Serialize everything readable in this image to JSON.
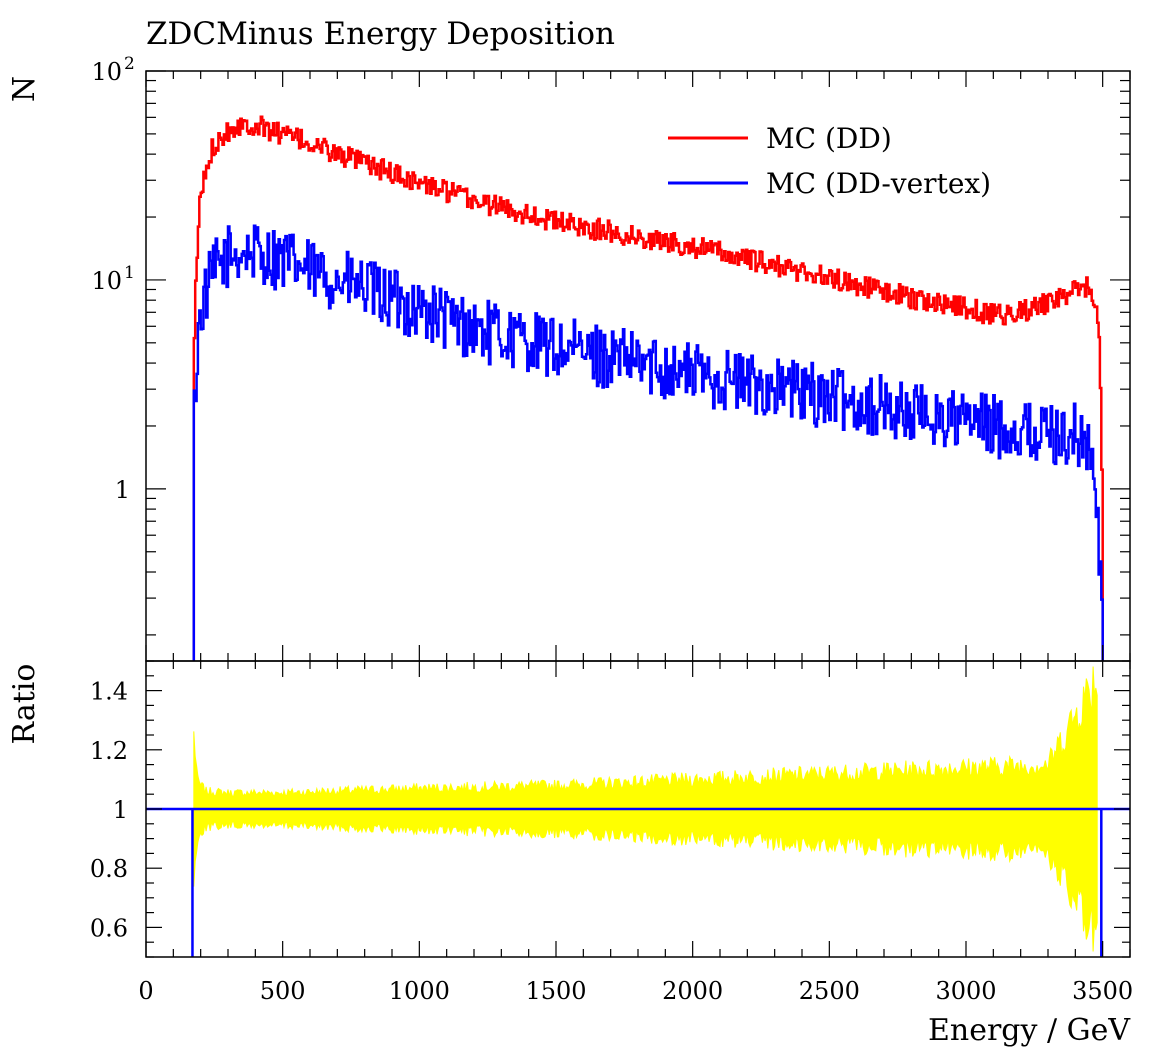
{
  "chart_data": [
    {
      "type": "line",
      "title": "ZDCMinus Energy Deposition",
      "ylabel": "N",
      "yscale": "log",
      "ylim": [
        0.15,
        100
      ],
      "xlim": [
        0,
        3600
      ],
      "ytick_labels": [
        {
          "value": 100,
          "base": "10",
          "exp": "2"
        },
        {
          "value": 10,
          "base": "10",
          "exp": "1"
        },
        {
          "value": 1,
          "base": "1",
          "exp": ""
        }
      ],
      "legend": {
        "position": "top-right"
      },
      "series": [
        {
          "name": "MC (DD)",
          "color": "#ff0000",
          "x": [
            175,
            200,
            250,
            300,
            350,
            400,
            500,
            600,
            700,
            800,
            1000,
            1200,
            1500,
            1800,
            2000,
            2200,
            2400,
            2600,
            2800,
            3000,
            3100,
            3200,
            3300,
            3400,
            3450,
            3480,
            3500
          ],
          "y": [
            2.5,
            25,
            45,
            52,
            56,
            55,
            50,
            45,
            40,
            36,
            29,
            24,
            19,
            16,
            14.5,
            12.5,
            11,
            9.5,
            8.2,
            7.3,
            6.8,
            7,
            7.8,
            8.8,
            9.3,
            7.5,
            0.2
          ]
        },
        {
          "name": "MC (DD-vertex)",
          "color": "#0000ff",
          "x": [
            175,
            200,
            250,
            300,
            350,
            400,
            500,
            600,
            700,
            800,
            1000,
            1200,
            1500,
            1800,
            2000,
            2200,
            2400,
            2600,
            2800,
            3000,
            3200,
            3400,
            3450,
            3480,
            3500
          ],
          "y": [
            1.8,
            7,
            11,
            13,
            13.5,
            13.5,
            12.5,
            11,
            10,
            9,
            7.2,
            5.8,
            4.7,
            4,
            3.6,
            3.2,
            2.9,
            2.6,
            2.3,
            2.1,
            1.9,
            1.8,
            1.6,
            0.7,
            0.2
          ]
        }
      ]
    },
    {
      "type": "area",
      "ylabel": "Ratio",
      "xlabel": "Energy  / GeV",
      "ylim": [
        0.5,
        1.5
      ],
      "xlim": [
        0,
        3600
      ],
      "yticks": [
        0.6,
        0.8,
        1,
        1.2,
        1.4
      ],
      "ytick_labels": [
        "0.6",
        "0.8",
        "1",
        "1.2",
        "1.4"
      ],
      "xticks": [
        0,
        500,
        1000,
        1500,
        2000,
        2500,
        3000,
        3500
      ],
      "xtick_labels": [
        "0",
        "500",
        "1000",
        "1500",
        "2000",
        "2500",
        "3000",
        "3500"
      ],
      "band": {
        "color": "#ffff00",
        "x": [
          175,
          190,
          220,
          300,
          500,
          1000,
          1500,
          2000,
          2500,
          3000,
          3300,
          3480
        ],
        "half_width": [
          0.25,
          0.09,
          0.06,
          0.055,
          0.055,
          0.07,
          0.08,
          0.1,
          0.12,
          0.14,
          0.15,
          0.45
        ]
      },
      "reference_line": {
        "color": "#0000ff",
        "value": 1,
        "range": [
          170,
          3495
        ]
      }
    }
  ]
}
